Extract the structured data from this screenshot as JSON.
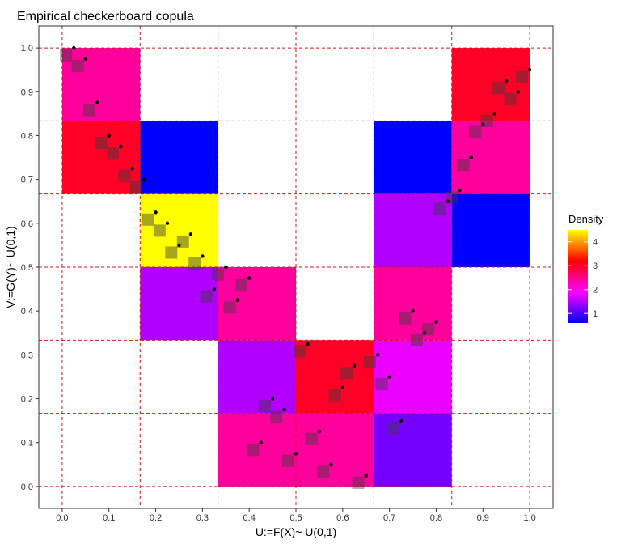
{
  "chart_data": {
    "type": "heatmap",
    "title": "Empirical checkerboard copula",
    "xlabel": "U:=F(X)~ U(0,1)",
    "ylabel": "V:=G(Y)~ U(0,1)",
    "xlim": [
      -0.05,
      1.05
    ],
    "ylim": [
      -0.05,
      1.05
    ],
    "x_ticks": [
      "0.0",
      "0.1",
      "0.2",
      "0.3",
      "0.4",
      "0.5",
      "0.6",
      "0.7",
      "0.8",
      "0.9",
      "1.0"
    ],
    "y_ticks": [
      "0.0",
      "0.1",
      "0.2",
      "0.3",
      "0.4",
      "0.5",
      "0.6",
      "0.7",
      "0.8",
      "0.9",
      "1.0"
    ],
    "grid_breaks": [
      0,
      0.1667,
      0.3333,
      0.5,
      0.6667,
      0.8333,
      1
    ],
    "legend": {
      "title": "Density",
      "placement": "right",
      "ticks": [
        "1",
        "2",
        "3",
        "4"
      ],
      "colors": [
        "#0000ff",
        "#ff00ff",
        "#ff0000",
        "#ffff00"
      ],
      "range": [
        0.6,
        4.5
      ]
    },
    "cells": [
      {
        "x": [
          0,
          0.1667
        ],
        "y": [
          0.8333,
          1
        ],
        "density": 2.4
      },
      {
        "x": [
          0,
          0.1667
        ],
        "y": [
          0.6667,
          0.8333
        ],
        "density": 3.0
      },
      {
        "x": [
          0.1667,
          0.3333
        ],
        "y": [
          0.6667,
          0.8333
        ],
        "density": 0.6
      },
      {
        "x": [
          0.1667,
          0.3333
        ],
        "y": [
          0.5,
          0.6667
        ],
        "density": 4.5
      },
      {
        "x": [
          0.1667,
          0.3333
        ],
        "y": [
          0.3333,
          0.5
        ],
        "density": 1.5
      },
      {
        "x": [
          0.3333,
          0.5
        ],
        "y": [
          0.3333,
          0.5
        ],
        "density": 2.4
      },
      {
        "x": [
          0.3333,
          0.5
        ],
        "y": [
          0.1667,
          0.3333
        ],
        "density": 1.5
      },
      {
        "x": [
          0.3333,
          0.5
        ],
        "y": [
          0,
          0.1667
        ],
        "density": 2.4
      },
      {
        "x": [
          0.5,
          0.6667
        ],
        "y": [
          0.1667,
          0.3333
        ],
        "density": 3.0
      },
      {
        "x": [
          0.5,
          0.6667
        ],
        "y": [
          0,
          0.1667
        ],
        "density": 2.4
      },
      {
        "x": [
          0.6667,
          0.8333
        ],
        "y": [
          0,
          0.1667
        ],
        "density": 1.2
      },
      {
        "x": [
          0.6667,
          0.8333
        ],
        "y": [
          0.1667,
          0.3333
        ],
        "density": 1.8
      },
      {
        "x": [
          0.6667,
          0.8333
        ],
        "y": [
          0.3333,
          0.5
        ],
        "density": 2.4
      },
      {
        "x": [
          0.6667,
          0.8333
        ],
        "y": [
          0.5,
          0.6667
        ],
        "density": 1.5
      },
      {
        "x": [
          0.6667,
          0.8333
        ],
        "y": [
          0.6667,
          0.8333
        ],
        "density": 0.6
      },
      {
        "x": [
          0.8333,
          1
        ],
        "y": [
          0.6667,
          0.8333
        ],
        "density": 2.4
      },
      {
        "x": [
          0.8333,
          1
        ],
        "y": [
          0.5,
          0.6667
        ],
        "density": 0.6
      },
      {
        "x": [
          0.8333,
          1
        ],
        "y": [
          0.8333,
          1
        ],
        "density": 3.0
      }
    ],
    "points": [
      [
        0.025,
        1.0
      ],
      [
        0.05,
        0.975
      ],
      [
        0.075,
        0.875
      ],
      [
        0.1,
        0.8
      ],
      [
        0.125,
        0.775
      ],
      [
        0.15,
        0.725
      ],
      [
        0.175,
        0.7
      ],
      [
        0.2,
        0.625
      ],
      [
        0.225,
        0.6
      ],
      [
        0.25,
        0.55
      ],
      [
        0.275,
        0.575
      ],
      [
        0.3,
        0.525
      ],
      [
        0.325,
        0.45
      ],
      [
        0.35,
        0.5
      ],
      [
        0.375,
        0.425
      ],
      [
        0.4,
        0.475
      ],
      [
        0.425,
        0.1
      ],
      [
        0.45,
        0.2
      ],
      [
        0.475,
        0.175
      ],
      [
        0.5,
        0.075
      ],
      [
        0.525,
        0.325
      ],
      [
        0.55,
        0.125
      ],
      [
        0.575,
        0.05
      ],
      [
        0.6,
        0.225
      ],
      [
        0.625,
        0.275
      ],
      [
        0.65,
        0.025
      ],
      [
        0.675,
        0.3
      ],
      [
        0.7,
        0.25
      ],
      [
        0.725,
        0.15
      ],
      [
        0.75,
        0.4
      ],
      [
        0.775,
        0.35
      ],
      [
        0.8,
        0.375
      ],
      [
        0.825,
        0.65
      ],
      [
        0.85,
        0.675
      ],
      [
        0.875,
        0.75
      ],
      [
        0.9,
        0.825
      ],
      [
        0.925,
        0.85
      ],
      [
        0.95,
        0.925
      ],
      [
        0.975,
        0.9
      ],
      [
        1.0,
        0.95
      ]
    ]
  }
}
